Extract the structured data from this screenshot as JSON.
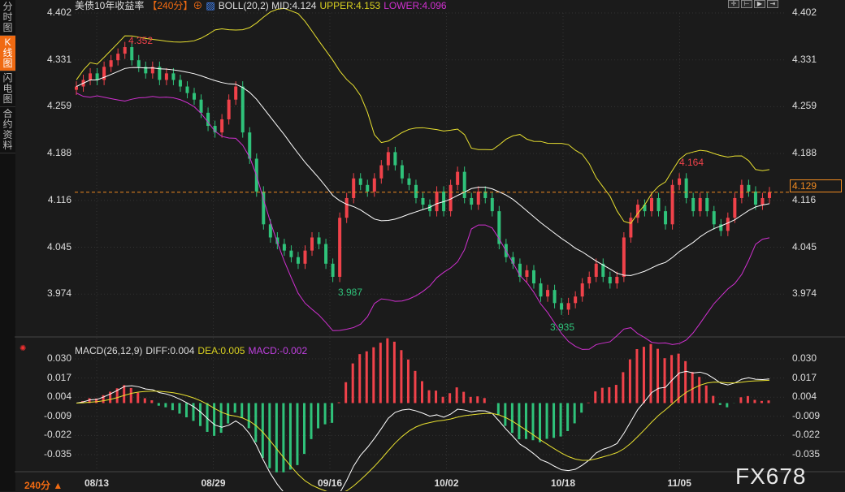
{
  "sidebar": {
    "tabs": [
      {
        "label": "分时图"
      },
      {
        "label": "K线图",
        "active": true
      },
      {
        "label": "闪电图"
      },
      {
        "label": "合约资料"
      }
    ]
  },
  "header": {
    "title": "美债10年收益率",
    "period": "【240分】",
    "boll": "BOLL(20,2) MID:4.124",
    "upper": "UPPER:4.153",
    "lower": "LOWER:4.096"
  },
  "price_axis": [
    "4.402",
    "4.331",
    "4.259",
    "4.188",
    "4.116",
    "4.045",
    "3.974"
  ],
  "current_price": "4.129",
  "annotations": {
    "high": "4.352",
    "low1": "3.987",
    "low2": "3.935",
    "high2": "4.164"
  },
  "macd": {
    "title": "MACD(26,12,9)",
    "diff": "DIFF:0.004",
    "dea": "DEA:0.005",
    "macd": "MACD:-0.002",
    "axis": [
      "0.030",
      "0.017",
      "0.004",
      "-0.009",
      "-0.022",
      "-0.035"
    ]
  },
  "x_labels": [
    "08/13",
    "08/29",
    "09/16",
    "10/02",
    "10/18",
    "11/05"
  ],
  "period_selector": "240分 ▲",
  "watermark": "FX678",
  "colors": {
    "up": "#f0424a",
    "down": "#2fc27a",
    "upper": "#e8e030",
    "lower": "#d030d0",
    "mid": "#ffffff",
    "accent": "#f06a12"
  },
  "chart_data": {
    "type": "candlestick",
    "closes": [
      4.29,
      4.3,
      4.31,
      4.3,
      4.32,
      4.33,
      4.34,
      4.35,
      4.33,
      4.32,
      4.31,
      4.32,
      4.3,
      4.31,
      4.3,
      4.29,
      4.28,
      4.27,
      4.25,
      4.23,
      4.22,
      4.24,
      4.27,
      4.29,
      4.22,
      4.18,
      4.13,
      4.08,
      4.06,
      4.05,
      4.04,
      4.03,
      4.02,
      4.04,
      4.06,
      4.05,
      4.02,
      4.0,
      4.09,
      4.12,
      4.15,
      4.14,
      4.13,
      4.15,
      4.17,
      4.19,
      4.17,
      4.15,
      4.14,
      4.12,
      4.11,
      4.1,
      4.13,
      4.1,
      4.14,
      4.16,
      4.12,
      4.11,
      4.13,
      4.12,
      4.1,
      4.05,
      4.03,
      4.02,
      4.0,
      4.01,
      3.99,
      3.97,
      3.98,
      3.96,
      3.95,
      3.96,
      3.97,
      3.99,
      4.0,
      4.02,
      4.0,
      3.99,
      4.0,
      4.06,
      4.09,
      4.11,
      4.1,
      4.12,
      4.1,
      4.08,
      4.14,
      4.15,
      4.12,
      4.1,
      4.12,
      4.1,
      4.08,
      4.07,
      4.09,
      4.12,
      4.14,
      4.13,
      4.11,
      4.12,
      4.129
    ],
    "ylim": [
      3.974,
      4.402
    ],
    "macd_ylim": [
      -0.035,
      0.03
    ]
  }
}
